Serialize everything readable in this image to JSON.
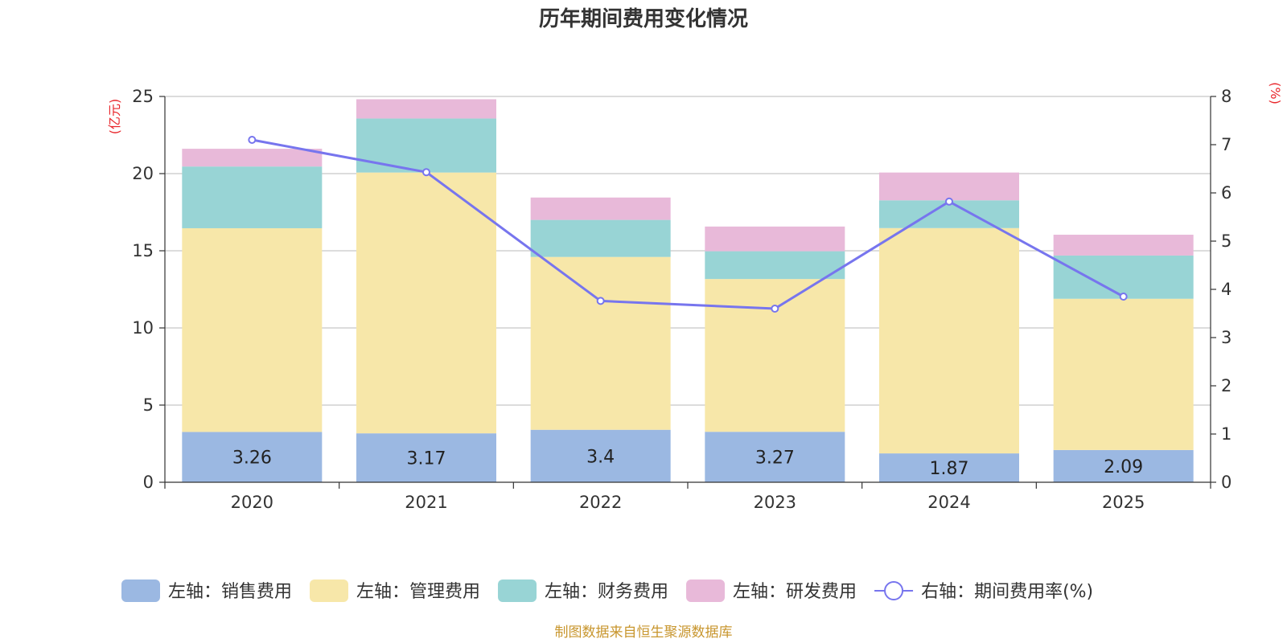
{
  "chart_data": {
    "type": "bar",
    "stacked": true,
    "title": "历年期间费用变化情况",
    "categories": [
      "2020",
      "2021",
      "2022",
      "2023",
      "2024",
      "2025"
    ],
    "series": [
      {
        "name": "左轴：销售费用",
        "axis": "left",
        "type": "bar",
        "color": "#9bb8e2",
        "values": [
          3.26,
          3.17,
          3.4,
          3.27,
          1.87,
          2.09
        ],
        "show_labels": true
      },
      {
        "name": "左轴：管理费用",
        "axis": "left",
        "type": "bar",
        "color": "#f7e7a9",
        "values": [
          13.2,
          16.9,
          11.2,
          9.9,
          14.6,
          9.8
        ]
      },
      {
        "name": "左轴：财务费用",
        "axis": "left",
        "type": "bar",
        "color": "#98d4d5",
        "values": [
          4.0,
          3.5,
          2.4,
          1.8,
          1.8,
          2.8
        ]
      },
      {
        "name": "左轴：研发费用",
        "axis": "left",
        "type": "bar",
        "color": "#e8b9d9",
        "values": [
          1.15,
          1.25,
          1.45,
          1.6,
          1.8,
          1.35
        ]
      },
      {
        "name": "右轴：期间费用率(%)",
        "axis": "right",
        "type": "line",
        "color": "#7775ee",
        "values": [
          7.1,
          6.43,
          3.76,
          3.6,
          5.82,
          3.85
        ]
      }
    ],
    "left_axis": {
      "unit": "(亿元)",
      "min": 0,
      "max": 25,
      "ticks": [
        "0",
        "5",
        "10",
        "15",
        "20",
        "25"
      ]
    },
    "right_axis": {
      "unit": "(%)",
      "min": 0,
      "max": 8,
      "ticks": [
        "0",
        "1",
        "2",
        "3",
        "4",
        "5",
        "6",
        "7",
        "8"
      ]
    },
    "grid": true,
    "legend_position": "bottom",
    "source": "制图数据来自恒生聚源数据库"
  }
}
